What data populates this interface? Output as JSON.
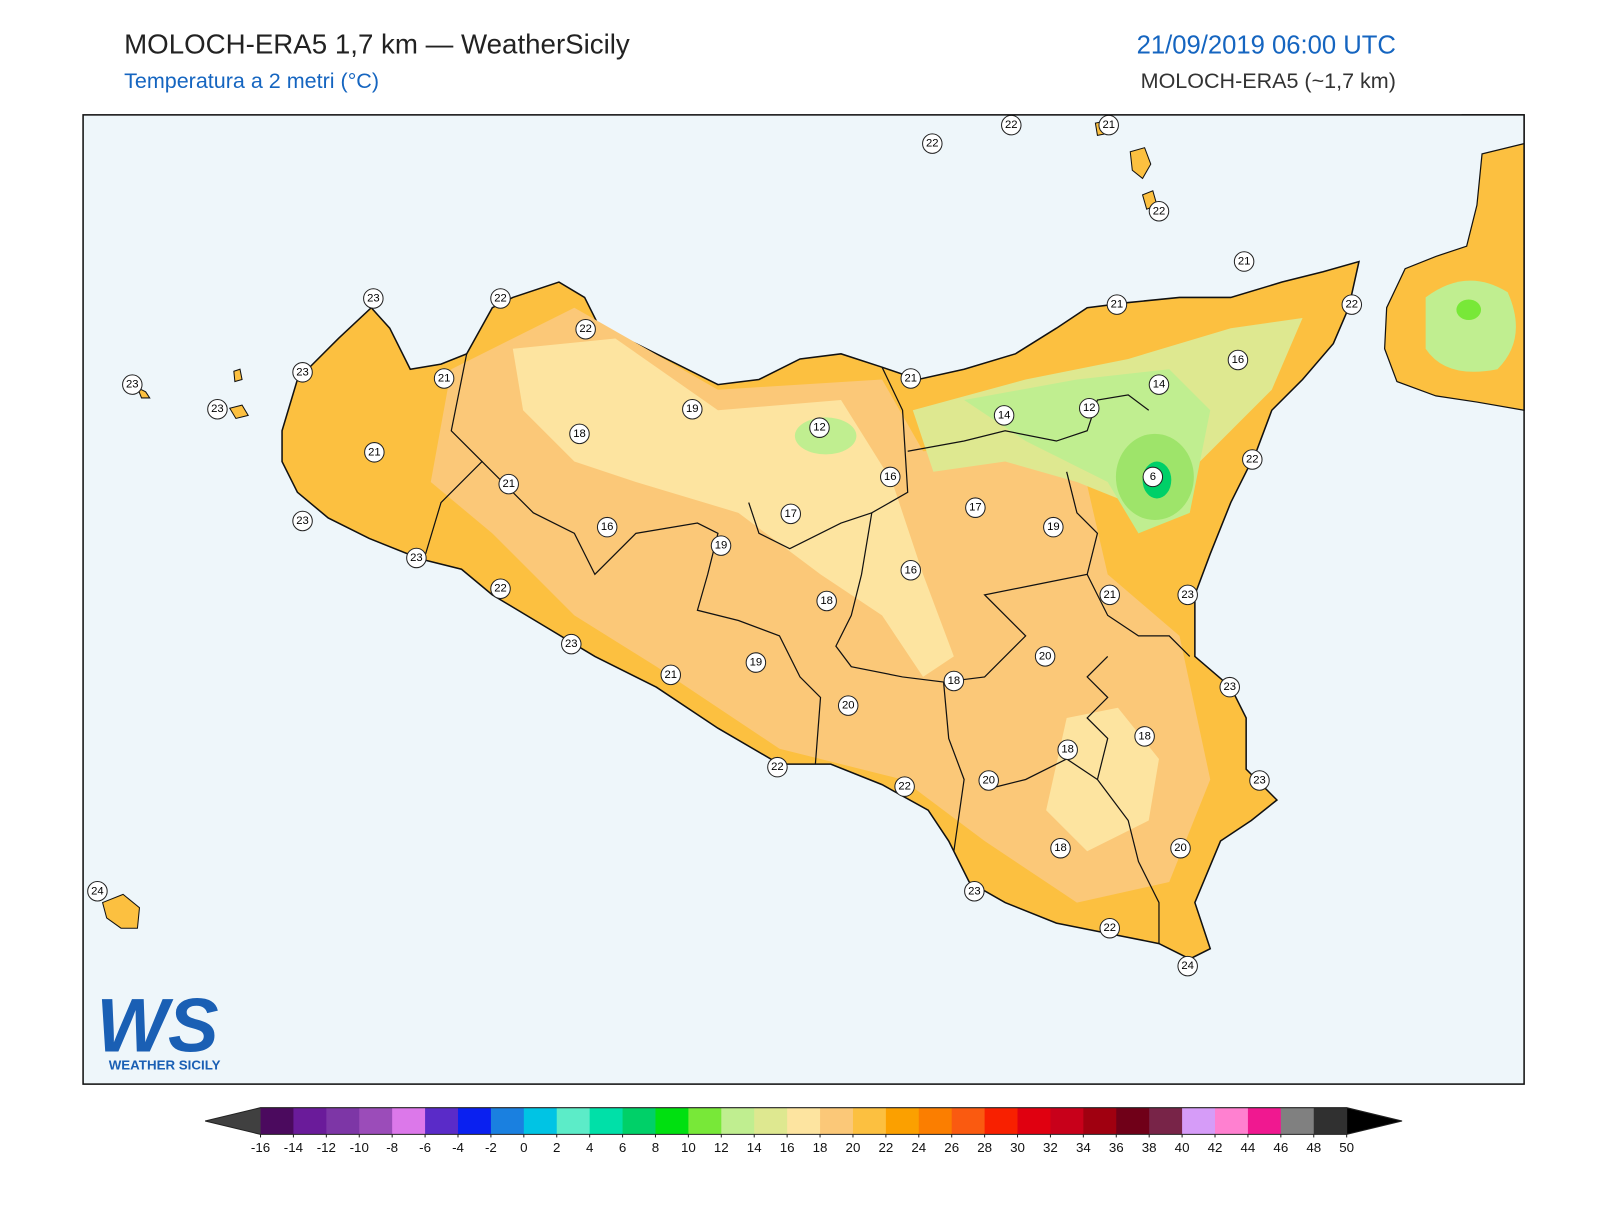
{
  "header": {
    "title": "MOLOCH-ERA5 1,7 km — WeatherSicily",
    "subtitle": "Temperatura a 2 metri (°C)",
    "datetime": "21/09/2019 06:00 UTC",
    "model": "MOLOCH-ERA5 (~1,7 km)"
  },
  "map": {
    "station_values": [
      22,
      22,
      21,
      22,
      21,
      22,
      21,
      16,
      14,
      14,
      12,
      21,
      23,
      22,
      22,
      23,
      23,
      21,
      23,
      19,
      18,
      12,
      21,
      16,
      6,
      22,
      21,
      17,
      17,
      16,
      19,
      19,
      23,
      23,
      16,
      18,
      21,
      23,
      22,
      23,
      20,
      19,
      21,
      18,
      23,
      20,
      18,
      18,
      23,
      22,
      20,
      22,
      18,
      20,
      23,
      22,
      24,
      24
    ]
  },
  "logo": {
    "letters": "WS",
    "text": "WEATHER SICILY"
  },
  "colorbar": {
    "ticks": [
      -16,
      -14,
      -12,
      -10,
      -8,
      -6,
      -4,
      -2,
      0,
      2,
      4,
      6,
      8,
      10,
      12,
      14,
      16,
      18,
      20,
      22,
      24,
      26,
      28,
      30,
      32,
      34,
      36,
      38,
      40,
      42,
      44,
      46,
      48,
      50
    ],
    "colors": [
      "#4b0a5e",
      "#6a1b9a",
      "#7d36a6",
      "#9b4cb9",
      "#dc78ea",
      "#5a2bc8",
      "#0a20f0",
      "#1a80e0",
      "#00c4e4",
      "#5cecc8",
      "#00e0a8",
      "#00d068",
      "#00e010",
      "#78e838",
      "#c0ee90",
      "#dee890",
      "#fde4a0",
      "#fbc878",
      "#fcc040",
      "#fba000",
      "#fb7e00",
      "#fa5a10",
      "#f82000",
      "#e00010",
      "#c8001a",
      "#a00010",
      "#700018",
      "#782448",
      "#d69cf8",
      "#ff80d0",
      "#f01890",
      "#808080",
      "#303030"
    ],
    "under_color": "#404040",
    "over_color": "#000000"
  }
}
